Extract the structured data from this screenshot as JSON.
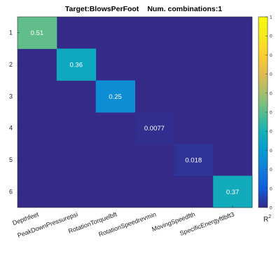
{
  "chart_data": {
    "type": "heatmap",
    "title": {
      "target": "Target:BlowsPerFoot",
      "combinations": "Num. combinations:1"
    },
    "xlabels": [
      "Depthfeet",
      "PeakDownPressurepsi",
      "RotationTorquelbft",
      "RotationSpeedrevmin",
      "MovingSpeedfth",
      "SpecificEnergyftlbft3"
    ],
    "ylabels": [
      "1",
      "2",
      "3",
      "4",
      "5",
      "6"
    ],
    "cells": [
      {
        "row": 0,
        "col": 0,
        "value": 0.51,
        "label": "0.51"
      },
      {
        "row": 1,
        "col": 1,
        "value": 0.36,
        "label": "0.36"
      },
      {
        "row": 2,
        "col": 2,
        "value": 0.25,
        "label": "0.25"
      },
      {
        "row": 3,
        "col": 3,
        "value": 0.0077,
        "label": "0.0077"
      },
      {
        "row": 4,
        "col": 4,
        "value": 0.018,
        "label": "0.018"
      },
      {
        "row": 5,
        "col": 5,
        "value": 0.37,
        "label": "0.37"
      }
    ],
    "background_value": 0,
    "colormap": "parula",
    "clim": [
      0,
      1
    ],
    "colorbar": {
      "label": "R",
      "label_superscript": "2",
      "ticks": [
        "1",
        "0",
        "0",
        "0",
        "0",
        "0",
        "0",
        "0",
        "0",
        "0",
        "0"
      ]
    }
  }
}
